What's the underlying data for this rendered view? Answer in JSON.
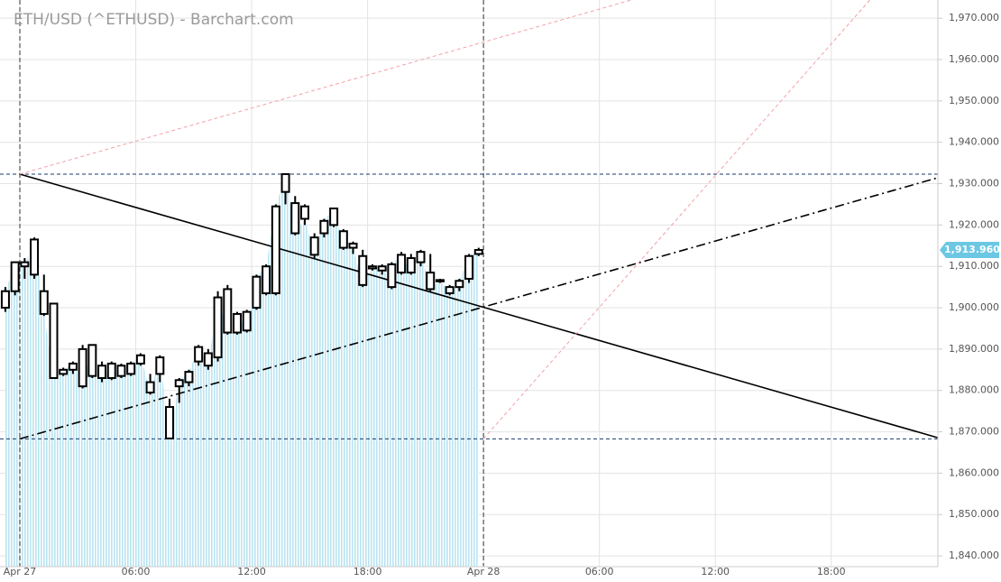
{
  "chart_data": {
    "type": "candlestick",
    "title": "ETH/USD (^ETHUSD) - Barchart.com",
    "x": [
      -0.75,
      -0.25,
      0.25,
      0.75,
      1.25,
      1.75,
      2.25,
      2.75,
      3.25,
      3.75,
      4.25,
      4.75,
      5.25,
      5.75,
      6.25,
      6.75,
      7.25,
      7.75,
      8.25,
      8.75,
      9.25,
      9.75,
      10.25,
      10.75,
      11.25,
      11.75,
      12.25,
      12.75,
      13.25,
      13.75,
      14.25,
      14.75,
      15.25,
      15.75,
      16.25,
      16.75,
      17.25,
      17.75,
      18.25,
      18.75,
      19.25,
      19.75,
      20.25,
      20.75,
      21.25,
      21.75,
      22.25,
      22.75,
      23.25,
      23.75
    ],
    "open": [
      1900,
      1904,
      1911,
      1908,
      1904,
      1901,
      1884,
      1885,
      1890,
      1883.5,
      1886,
      1883,
      1886,
      1884,
      1886.5,
      1882,
      1884,
      1876,
      1881,
      1882,
      1887,
      1889,
      1888,
      1904.5,
      1894,
      1899,
      1900,
      1903.5,
      1903.5,
      1928,
      1925.3,
      1924.5,
      1917,
      1918,
      1920,
      1918.5,
      1915.5,
      1912.5,
      1910,
      1909,
      1905,
      1908.5,
      1912,
      1911,
      1908.5,
      1906.5,
      1905,
      1905,
      1907,
      1913
    ],
    "high": [
      1905,
      1911,
      1912,
      1917,
      1908,
      1901,
      1885.5,
      1887,
      1891,
      1891,
      1887,
      1887,
      1886.5,
      1887,
      1889,
      1884,
      1888.5,
      1878,
      1883,
      1885,
      1891,
      1890,
      1904,
      1905.5,
      1899,
      1899.5,
      1908,
      1910.5,
      1925,
      1932.4,
      1927,
      1925,
      1918,
      1921.5,
      1924,
      1919,
      1916,
      1914,
      1910.5,
      1910.5,
      1911,
      1913.5,
      1913,
      1914,
      1913,
      1907,
      1905.5,
      1907,
      1913,
      1914.5
    ],
    "low": [
      1899,
      1903,
      1907,
      1907,
      1898,
      1883,
      1883.5,
      1884,
      1880.5,
      1883,
      1882,
      1882.5,
      1883,
      1883.5,
      1886,
      1879,
      1882,
      1868.4,
      1877,
      1881,
      1886,
      1885,
      1887,
      1893.5,
      1893.5,
      1894,
      1899.5,
      1903,
      1903,
      1925,
      1917.5,
      1920,
      1912,
      1917,
      1919.5,
      1914,
      1913,
      1905,
      1909,
      1908,
      1904.5,
      1908,
      1908,
      1910,
      1904,
      1906,
      1903,
      1904,
      1906,
      1912.5
    ],
    "close": [
      1904,
      1911,
      1910,
      1916.5,
      1898.5,
      1883,
      1885,
      1886.5,
      1881,
      1891,
      1883,
      1886.5,
      1883.5,
      1886.5,
      1888.5,
      1879.5,
      1888,
      1868.4,
      1882.5,
      1884.5,
      1890.5,
      1886,
      1902.5,
      1894,
      1898.5,
      1894.5,
      1907.5,
      1910,
      1924.5,
      1932.3,
      1918,
      1921.5,
      1912.8,
      1921,
      1924,
      1914.5,
      1914.5,
      1905.5,
      1909.5,
      1910,
      1910.5,
      1912.8,
      1908.5,
      1913.5,
      1904.5,
      1906.7,
      1903.5,
      1906.5,
      1912.5,
      1913.96
    ],
    "last_price": {
      "value": 1913.96,
      "label": "1,913.960"
    },
    "xlim": [
      -1.027,
      47.52
    ],
    "ylim": [
      1837.4,
      1974.4
    ],
    "xticks": [
      {
        "value": 0,
        "label": "Apr 27"
      },
      {
        "value": 6,
        "label": "06:00"
      },
      {
        "value": 12,
        "label": "12:00"
      },
      {
        "value": 18,
        "label": "18:00"
      },
      {
        "value": 24,
        "label": "Apr 28"
      },
      {
        "value": 30,
        "label": "06:00"
      },
      {
        "value": 36,
        "label": "12:00"
      },
      {
        "value": 42,
        "label": "18:00"
      }
    ],
    "yticks": [
      {
        "value": 1840,
        "label": "1,840.000"
      },
      {
        "value": 1850,
        "label": "1,850.000"
      },
      {
        "value": 1860,
        "label": "1,860.000"
      },
      {
        "value": 1870,
        "label": "1,870.000"
      },
      {
        "value": 1880,
        "label": "1,880.000"
      },
      {
        "value": 1890,
        "label": "1,890.000"
      },
      {
        "value": 1900,
        "label": "1,900.000"
      },
      {
        "value": 1910,
        "label": "1,910.000"
      },
      {
        "value": 1920,
        "label": "1,920.000"
      },
      {
        "value": 1930,
        "label": "1,930.000"
      },
      {
        "value": 1940,
        "label": "1,940.000"
      },
      {
        "value": 1950,
        "label": "1,950.000"
      },
      {
        "value": 1960,
        "label": "1,960.000"
      },
      {
        "value": 1970,
        "label": "1,970.000"
      }
    ],
    "grid": true,
    "hlines": [
      1932.3,
      1868.3
    ],
    "vlines": [
      0,
      24
    ],
    "drawings": [
      {
        "style": "solid",
        "color": "#000000",
        "x": [
          0,
          47.5
        ],
        "y": [
          1932.3,
          1868.6
        ]
      },
      {
        "style": "dashdot",
        "color": "#000000",
        "x": [
          0,
          47.5
        ],
        "y": [
          1868.3,
          1931.4
        ]
      },
      {
        "style": "dashed",
        "color": "#f4a0a8",
        "x": [
          0,
          31.65
        ],
        "y": [
          1932.3,
          1974.4
        ]
      },
      {
        "style": "dashed",
        "color": "#f4a0a8",
        "x": [
          24,
          44
        ],
        "y": [
          1868.3,
          1974.4
        ]
      }
    ]
  }
}
